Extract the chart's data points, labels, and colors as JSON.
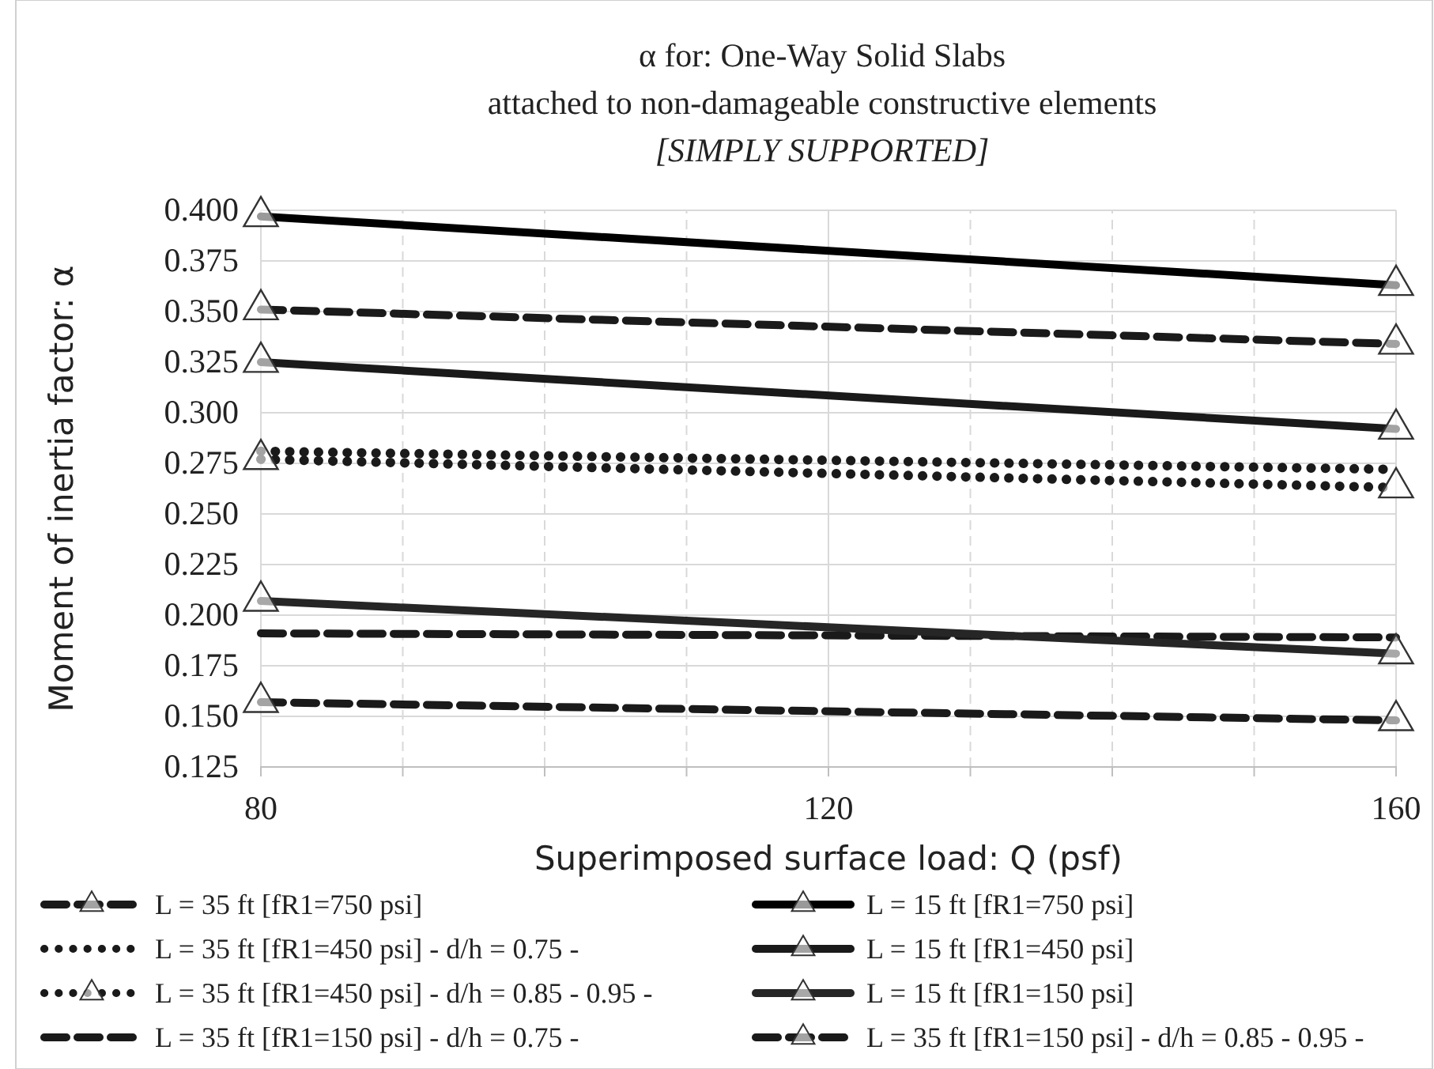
{
  "chart_data": {
    "type": "line",
    "title": "α for: One-Way Solid Slabs\nattached to non-damageable constructive elements",
    "subtitle": "[SIMPLY SUPPORTED]",
    "xlabel": "Superimposed surface load: Q (psf)",
    "ylabel": "Moment of inertia factor: α",
    "x": [
      80,
      160
    ],
    "xlim": [
      80,
      160
    ],
    "xticks": [
      80,
      {
        "value": 90,
        "label": null
      },
      {
        "value": 100,
        "label": null
      },
      {
        "value": 110,
        "label": null
      },
      120,
      {
        "value": 130,
        "label": null
      },
      {
        "value": 140,
        "label": null
      },
      {
        "value": 150,
        "label": null
      },
      160
    ],
    "ylim": [
      0.125,
      0.4
    ],
    "yticks": [
      0.125,
      {
        "value": 0.15,
        "label": "0.150"
      },
      0.175,
      {
        "value": 0.2,
        "label": "0.200"
      },
      0.225,
      {
        "value": 0.25,
        "label": "0.250"
      },
      0.275,
      {
        "value": 0.3,
        "label": "0.300"
      },
      0.325,
      {
        "value": 0.35,
        "label": "0.350"
      },
      0.375,
      {
        "value": 0.4,
        "label": "0.400"
      }
    ],
    "grid": true,
    "legend": "bottom",
    "series": [
      {
        "name": "L = 35 ft [fR1=750 psi]",
        "color": "#1a1a1a",
        "values": [
          0.351,
          0.334
        ],
        "line_style": "dashed",
        "marker": "triangle"
      },
      {
        "name": "L = 35 ft [fR1=450 psi] - d/h = 0.75 -",
        "color": "#1a1a1a",
        "values": [
          0.281,
          0.272
        ],
        "line_style": "dotted",
        "marker": "none"
      },
      {
        "name": "L = 35 ft [fR1=450 psi] - d/h = 0.85 - 0.95 -",
        "color": "#1a1a1a",
        "values": [
          0.277,
          0.263
        ],
        "line_style": "dotted",
        "marker": "triangle"
      },
      {
        "name": "L = 35 ft [fR1=150 psi] - d/h = 0.75 -",
        "color": "#1a1a1a",
        "values": [
          0.191,
          0.189
        ],
        "line_style": "dashed",
        "marker": "none"
      },
      {
        "name": "L = 15 ft [fR1=750 psi]",
        "color": "#000000",
        "values": [
          0.397,
          0.363
        ],
        "line_style": "solid",
        "marker": "triangle"
      },
      {
        "name": "L = 15 ft [fR1=450 psi]",
        "color": "#1a1a1a",
        "values": [
          0.325,
          0.292
        ],
        "line_style": "solid",
        "marker": "triangle"
      },
      {
        "name": "L = 15 ft [fR1=150 psi]",
        "color": "#262626",
        "values": [
          0.207,
          0.181
        ],
        "line_style": "solid",
        "marker": "triangle"
      },
      {
        "name": "L = 35 ft [fR1=150 psi] - d/h = 0.85 - 0.95 -",
        "color": "#1a1a1a",
        "values": [
          0.157,
          0.148
        ],
        "line_style": "dashed",
        "marker": "triangle"
      }
    ]
  }
}
